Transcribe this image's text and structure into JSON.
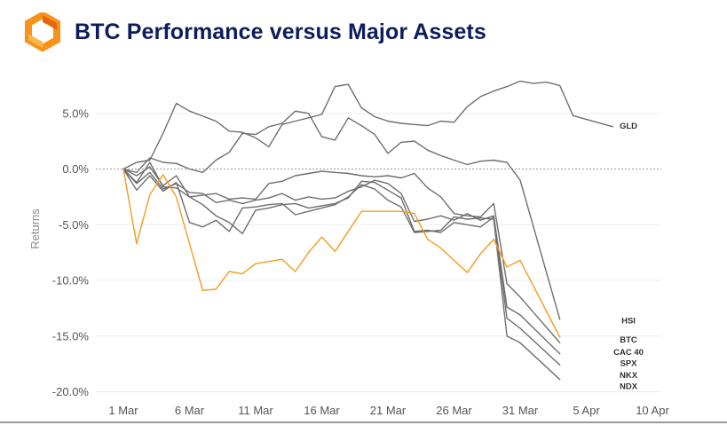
{
  "header": {
    "title": "BTC Performance versus Major Assets",
    "logo_icon": "orange-hexagon-logo-icon"
  },
  "colors": {
    "title": "#0b1d5c",
    "btc": "#f39c1f",
    "other": "#6e6e6e",
    "logo": "#f7931a"
  },
  "chart_data": {
    "type": "line",
    "title": "BTC Performance versus Major Assets",
    "xlabel": "",
    "ylabel": "Returns",
    "x_ticks": [
      "1 Mar",
      "6 Mar",
      "11 Mar",
      "16 Mar",
      "21 Mar",
      "26 Mar",
      "31 Mar",
      "5 Apr",
      "10 Apr"
    ],
    "y_ticks": [
      "5.0%",
      "0.0%",
      "-5.0%",
      "-10.0%",
      "-15.0%",
      "-20.0%"
    ],
    "ylim": [
      -20.5,
      8.5
    ],
    "xlim": [
      0,
      40
    ],
    "zero_line": "dotted",
    "grid": "horizontal",
    "series": [
      {
        "name": "GLD",
        "color": "#6e6e6e",
        "values": [
          [
            0,
            0.0
          ],
          [
            1,
            0.6
          ],
          [
            2,
            0.8
          ],
          [
            3,
            3.2
          ],
          [
            4,
            5.9
          ],
          [
            5,
            5.2
          ],
          [
            7,
            4.3
          ],
          [
            8,
            3.4
          ],
          [
            9,
            3.3
          ],
          [
            10,
            2.8
          ],
          [
            11,
            2.0
          ],
          [
            12,
            4.0
          ],
          [
            13,
            4.3
          ],
          [
            14,
            4.6
          ],
          [
            15,
            4.9
          ],
          [
            16,
            7.4
          ],
          [
            17,
            7.6
          ],
          [
            18,
            5.5
          ],
          [
            19,
            4.7
          ],
          [
            20,
            4.3
          ],
          [
            21,
            4.1
          ],
          [
            22,
            4.0
          ],
          [
            23,
            3.9
          ],
          [
            24,
            4.3
          ],
          [
            25,
            4.2
          ],
          [
            26,
            5.6
          ],
          [
            27,
            6.5
          ],
          [
            28,
            7.0
          ],
          [
            29,
            7.4
          ],
          [
            30,
            7.9
          ],
          [
            31,
            7.7
          ],
          [
            32,
            7.8
          ],
          [
            33,
            7.5
          ],
          [
            34,
            4.8
          ],
          [
            37,
            3.8
          ]
        ]
      },
      {
        "name": "HSI",
        "color": "#6e6e6e",
        "values": [
          [
            0,
            0.0
          ],
          [
            1,
            -0.3
          ],
          [
            2,
            1.0
          ],
          [
            3,
            0.6
          ],
          [
            4,
            0.5
          ],
          [
            5,
            0.0
          ],
          [
            6,
            -0.3
          ],
          [
            7,
            0.8
          ],
          [
            8,
            1.5
          ],
          [
            9,
            3.2
          ],
          [
            10,
            3.1
          ],
          [
            11,
            3.8
          ],
          [
            12,
            4.1
          ],
          [
            13,
            5.2
          ],
          [
            14,
            5.0
          ],
          [
            15,
            2.9
          ],
          [
            16,
            2.6
          ],
          [
            17,
            4.6
          ],
          [
            18,
            3.9
          ],
          [
            19,
            3.1
          ],
          [
            20,
            1.4
          ],
          [
            21,
            2.4
          ],
          [
            22,
            2.5
          ],
          [
            23,
            1.7
          ],
          [
            24,
            1.2
          ],
          [
            25,
            0.8
          ],
          [
            26,
            0.4
          ],
          [
            27,
            0.7
          ],
          [
            28,
            0.8
          ],
          [
            29,
            0.6
          ],
          [
            30,
            -1.0
          ],
          [
            33,
            -13.5
          ]
        ]
      },
      {
        "name": "BTC",
        "color": "#f39c1f",
        "values": [
          [
            0,
            0.0
          ],
          [
            1,
            -6.7
          ],
          [
            2,
            -2.3
          ],
          [
            3,
            -0.5
          ],
          [
            4,
            -2.5
          ],
          [
            6,
            -10.9
          ],
          [
            7,
            -10.8
          ],
          [
            8,
            -9.2
          ],
          [
            9,
            -9.4
          ],
          [
            10,
            -8.5
          ],
          [
            12,
            -8.1
          ],
          [
            13,
            -9.2
          ],
          [
            14,
            -7.5
          ],
          [
            15,
            -6.1
          ],
          [
            16,
            -7.4
          ],
          [
            18,
            -3.8
          ],
          [
            20,
            -3.8
          ],
          [
            21,
            -3.8
          ],
          [
            22,
            -4.0
          ],
          [
            23,
            -6.3
          ],
          [
            24,
            -7.1
          ],
          [
            26,
            -9.3
          ],
          [
            27,
            -7.6
          ],
          [
            28,
            -6.3
          ],
          [
            29,
            -8.8
          ],
          [
            30,
            -8.2
          ],
          [
            33,
            -15.1
          ]
        ]
      },
      {
        "name": "CAC 40",
        "color": "#6e6e6e",
        "values": [
          [
            0,
            0.0
          ],
          [
            1,
            -0.6
          ],
          [
            2,
            0.2
          ],
          [
            3,
            -1.5
          ],
          [
            4,
            -0.6
          ],
          [
            5,
            -2.5
          ],
          [
            7,
            -2.2
          ],
          [
            8,
            -2.7
          ],
          [
            9,
            -2.6
          ],
          [
            10,
            -2.7
          ],
          [
            11,
            -1.3
          ],
          [
            12,
            -1.1
          ],
          [
            13,
            -0.6
          ],
          [
            14,
            -0.4
          ],
          [
            15,
            -0.2
          ],
          [
            16,
            -0.3
          ],
          [
            17,
            -0.4
          ],
          [
            18,
            -0.6
          ],
          [
            19,
            -0.7
          ],
          [
            20,
            -0.6
          ],
          [
            21,
            -0.8
          ],
          [
            22,
            -0.4
          ],
          [
            23,
            -1.7
          ],
          [
            24,
            -2.5
          ],
          [
            25,
            -4.0
          ],
          [
            26,
            -4.2
          ],
          [
            27,
            -4.3
          ],
          [
            28,
            -3.1
          ],
          [
            29,
            -10.3
          ],
          [
            30,
            -11.5
          ],
          [
            33,
            -15.6
          ]
        ]
      },
      {
        "name": "SPX",
        "color": "#6e6e6e",
        "values": [
          [
            0,
            0.0
          ],
          [
            1,
            -1.3
          ],
          [
            2,
            -0.3
          ],
          [
            3,
            -1.8
          ],
          [
            4,
            -1.3
          ],
          [
            5,
            -2.1
          ],
          [
            6,
            -2.2
          ],
          [
            7,
            -3.0
          ],
          [
            8,
            -2.8
          ],
          [
            9,
            -3.1
          ],
          [
            10,
            -2.8
          ],
          [
            11,
            -2.6
          ],
          [
            12,
            -2.2
          ],
          [
            13,
            -2.8
          ],
          [
            14,
            -2.5
          ],
          [
            15,
            -2.7
          ],
          [
            16,
            -2.6
          ],
          [
            17,
            -2.0
          ],
          [
            18,
            -1.6
          ],
          [
            19,
            -1.0
          ],
          [
            20,
            -1.3
          ],
          [
            21,
            -2.2
          ],
          [
            22,
            -4.7
          ],
          [
            23,
            -4.5
          ],
          [
            24,
            -4.2
          ],
          [
            25,
            -4.6
          ],
          [
            26,
            -4.0
          ],
          [
            27,
            -4.6
          ],
          [
            28,
            -4.2
          ],
          [
            29,
            -12.4
          ],
          [
            30,
            -13.1
          ],
          [
            33,
            -16.6
          ]
        ]
      },
      {
        "name": "NKX",
        "color": "#6e6e6e",
        "values": [
          [
            0,
            0.0
          ],
          [
            1,
            -1.2
          ],
          [
            2,
            0.6
          ],
          [
            3,
            -1.6
          ],
          [
            4,
            -1.7
          ],
          [
            5,
            -2.5
          ],
          [
            6,
            -3.2
          ],
          [
            7,
            -4.2
          ],
          [
            8,
            -4.8
          ],
          [
            9,
            -5.8
          ],
          [
            10,
            -3.7
          ],
          [
            11,
            -3.5
          ],
          [
            12,
            -3.2
          ],
          [
            13,
            -3.1
          ],
          [
            14,
            -3.5
          ],
          [
            15,
            -3.3
          ],
          [
            16,
            -3.1
          ],
          [
            17,
            -2.6
          ],
          [
            18,
            -1.1
          ],
          [
            19,
            -1.2
          ],
          [
            20,
            -1.9
          ],
          [
            21,
            -2.6
          ],
          [
            22,
            -5.6
          ],
          [
            23,
            -5.5
          ],
          [
            24,
            -5.7
          ],
          [
            25,
            -4.8
          ],
          [
            26,
            -5.0
          ],
          [
            27,
            -5.2
          ],
          [
            28,
            -4.3
          ],
          [
            29,
            -13.4
          ],
          [
            30,
            -14.3
          ],
          [
            33,
            -17.6
          ]
        ]
      },
      {
        "name": "NDX",
        "color": "#6e6e6e",
        "values": [
          [
            0,
            0.0
          ],
          [
            1,
            -1.9
          ],
          [
            2,
            -0.6
          ],
          [
            3,
            -2.0
          ],
          [
            4,
            -1.2
          ],
          [
            5,
            -4.8
          ],
          [
            6,
            -5.2
          ],
          [
            7,
            -4.6
          ],
          [
            8,
            -5.6
          ],
          [
            9,
            -3.5
          ],
          [
            10,
            -3.4
          ],
          [
            11,
            -3.2
          ],
          [
            12,
            -3.1
          ],
          [
            13,
            -4.1
          ],
          [
            14,
            -3.8
          ],
          [
            15,
            -3.5
          ],
          [
            16,
            -3.2
          ],
          [
            17,
            -2.5
          ],
          [
            18,
            -1.4
          ],
          [
            19,
            -1.8
          ],
          [
            20,
            -2.8
          ],
          [
            21,
            -3.4
          ],
          [
            22,
            -5.7
          ],
          [
            23,
            -5.6
          ],
          [
            24,
            -5.5
          ],
          [
            25,
            -4.3
          ],
          [
            26,
            -4.5
          ],
          [
            27,
            -4.4
          ],
          [
            28,
            -4.5
          ],
          [
            29,
            -15.0
          ],
          [
            30,
            -15.6
          ],
          [
            33,
            -18.9
          ]
        ]
      }
    ],
    "series_labels": [
      {
        "name": "GLD",
        "value": 3.9
      },
      {
        "name": "HSI",
        "value": -13.6
      },
      {
        "name": "BTC",
        "value": -15.3
      },
      {
        "name": "CAC 40",
        "value": -16.4
      },
      {
        "name": "SPX",
        "value": -17.4
      },
      {
        "name": "NKX",
        "value": -18.5
      },
      {
        "name": "NDX",
        "value": -19.5
      }
    ]
  }
}
